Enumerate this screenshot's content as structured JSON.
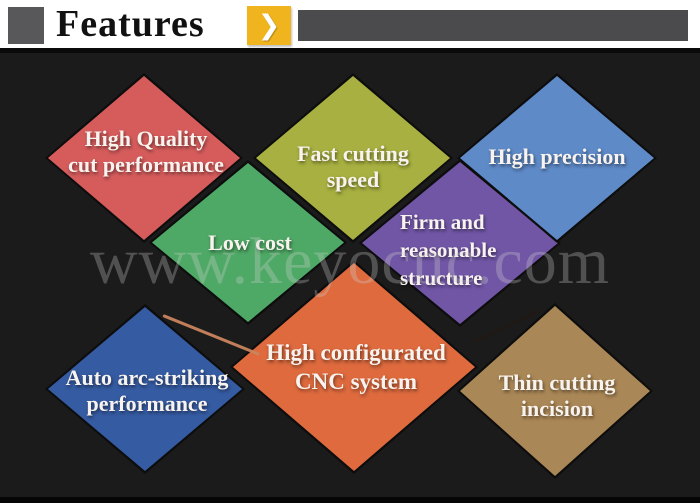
{
  "header": {
    "title": "Features",
    "arrow_glyph": "❯"
  },
  "watermark": {
    "text": "www.keyocnc.com"
  },
  "palette": {
    "background": "#1b1b1b",
    "header_bg": "#ffffff",
    "header_square": "#58585a",
    "header_bar": "#4b4b4d",
    "arrow_box": "#f0b41e",
    "label_text": "#f8f3ee",
    "scratch_line": "#c9855e"
  },
  "diamonds": [
    {
      "id": "high-quality",
      "color": "#d65c5c",
      "lines": [
        "High Quality",
        "cut performance"
      ]
    },
    {
      "id": "fast-cutting",
      "color": "#a7b040",
      "lines": [
        "Fast cutting",
        "speed"
      ]
    },
    {
      "id": "low-cost",
      "color": "#4fa966",
      "lines": [
        "Low cost"
      ]
    },
    {
      "id": "firm-structure",
      "color": "#7156a6",
      "lines": [
        "Firm and",
        "reasonable",
        "structure"
      ]
    },
    {
      "id": "high-precision",
      "color": "#5e8ac8",
      "lines": [
        "High precision"
      ]
    },
    {
      "id": "auto-arc",
      "color": "#355ba2",
      "lines": [
        "Auto arc-striking",
        "performance"
      ]
    },
    {
      "id": "thin-incision",
      "color": "#aa8756",
      "lines": [
        "Thin cutting",
        "incision"
      ]
    },
    {
      "id": "cnc-system",
      "color": "#de6a3e",
      "lines": [
        "High configurated",
        "CNC system"
      ]
    }
  ]
}
